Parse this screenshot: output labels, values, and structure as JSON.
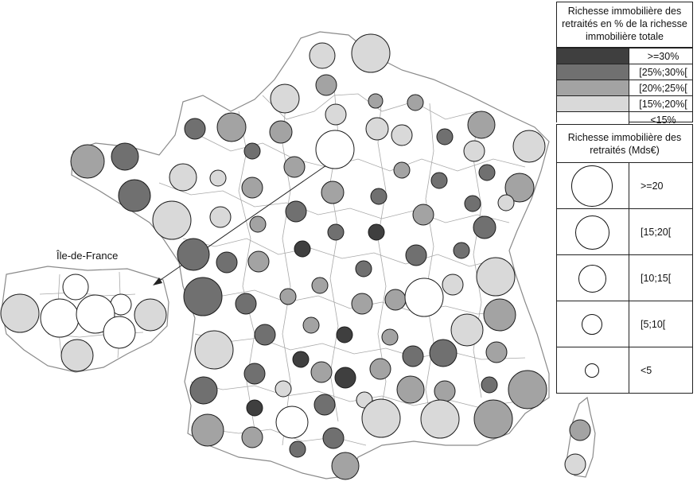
{
  "inset_label": "Île-de-France",
  "legend_color": {
    "title": "Richesse immobilière des retraités en % de la richesse immobilière totale",
    "items": [
      {
        "label": ">=30%",
        "color": "#3f3f3f"
      },
      {
        "label": "[25%;30%[",
        "color": "#707070"
      },
      {
        "label": "[20%;25%[",
        "color": "#a3a3a3"
      },
      {
        "label": "[15%;20%[",
        "color": "#d9d9d9"
      },
      {
        "label": "<15%",
        "color": "#ffffff"
      }
    ]
  },
  "legend_size": {
    "title": "Richesse immobilière des retraités (Mds€)",
    "items": [
      {
        "label": ">=20"
      },
      {
        "label": "[15;20["
      },
      {
        "label": "[10;15["
      },
      {
        "label": "[5;10["
      },
      {
        "label": "<5"
      }
    ]
  },
  "colors": {
    "class_30": "#3f3f3f",
    "class_25": "#707070",
    "class_20": "#a3a3a3",
    "class_15": "#d9d9d9",
    "class_lt15": "#ffffff",
    "boundary": "#9a9a9a"
  }
}
